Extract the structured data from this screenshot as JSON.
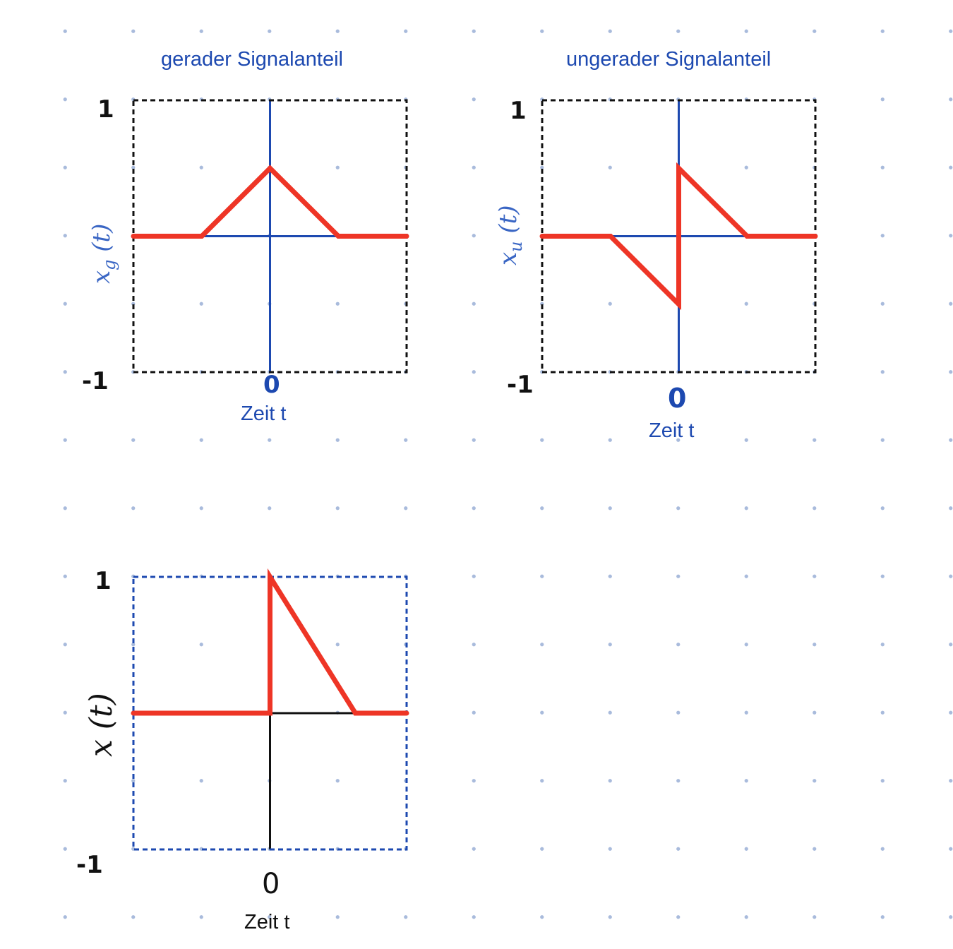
{
  "colors": {
    "signal": "#ee3526",
    "axis_blue": "#1d49b0",
    "axis_black": "#111111",
    "frame_black": "#111111",
    "frame_blue": "#1d49b0"
  },
  "chart_data": [
    {
      "type": "line",
      "title": "gerader Signalanteil",
      "xlabel": "Zeit t",
      "ylabel": "x_g(t)",
      "ytick_top": "1",
      "ytick_bottom": "-1",
      "xtick": "0",
      "xlim": [
        -2,
        2
      ],
      "ylim": [
        -1,
        1
      ],
      "grid": false,
      "series": [
        {
          "x": [
            -2,
            -1,
            0,
            1,
            2
          ],
          "y": [
            0,
            0,
            0.5,
            0,
            0
          ]
        }
      ]
    },
    {
      "type": "line",
      "title": "ungerader Signalanteil",
      "xlabel": "Zeit t",
      "ylabel": "x_u(t)",
      "ytick_top": "1",
      "ytick_bottom": "-1",
      "xtick": "0",
      "xlim": [
        -2,
        2
      ],
      "ylim": [
        -1,
        1
      ],
      "grid": false,
      "series": [
        {
          "x": [
            -2,
            -1,
            0,
            0,
            1,
            2
          ],
          "y": [
            0,
            0,
            -0.5,
            0.5,
            0,
            0
          ]
        }
      ]
    },
    {
      "type": "line",
      "title": "",
      "xlabel": "Zeit t",
      "ylabel": "x(t)",
      "ytick_top": "1",
      "ytick_bottom": "-1",
      "xtick": "0",
      "xlim": [
        -2,
        2
      ],
      "ylim": [
        -1,
        1
      ],
      "grid": false,
      "series": [
        {
          "x": [
            -2,
            0,
            0,
            1.25,
            2
          ],
          "y": [
            0,
            0,
            1,
            0,
            0
          ]
        }
      ]
    }
  ]
}
